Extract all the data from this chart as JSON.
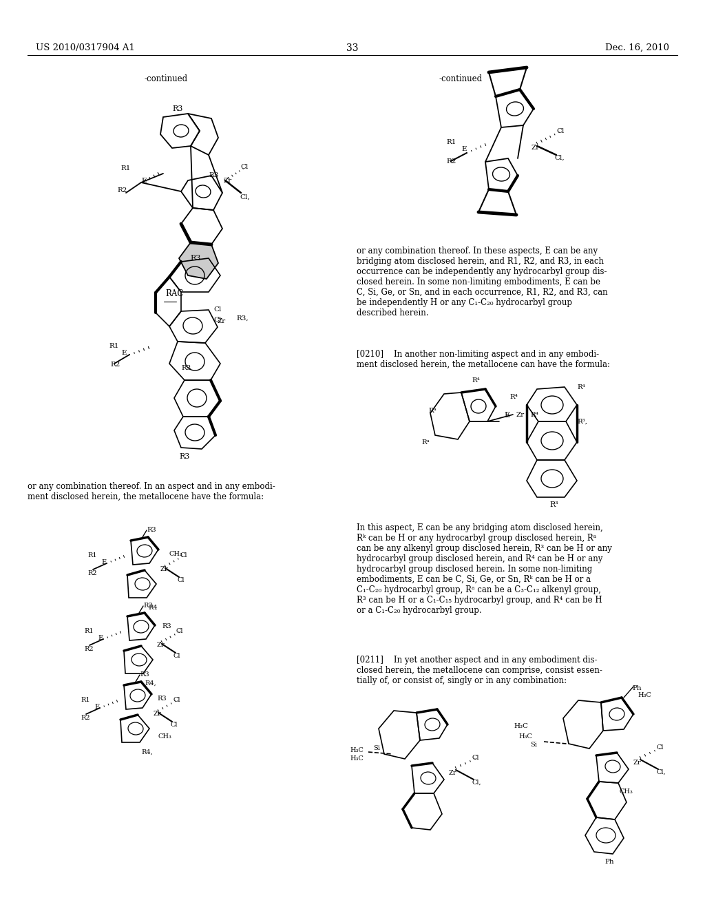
{
  "background_color": "#ffffff",
  "header_left": "US 2010/0317904 A1",
  "header_center": "33",
  "header_right": "Dec. 16, 2010",
  "left_continued": "-continued",
  "right_continued": "-continued",
  "rac_label": "RAC",
  "body_left_1": "or any combination thereof. In an aspect and in any embodi-\nment disclosed herein, the metallocene have the formula:",
  "body_right_1": "or any combination thereof. In these aspects, E can be any\nbridging atom disclosed herein, and R1, R2, and R3, in each\noccurrence can be independently any hydrocarbyl group dis-\nclosed herein. In some non-limiting embodiments, E can be\nC, Si, Ge, or Sn, and in each occurrence, R1, R2, and R3, can\nbe independently H or any C₁-C₂₀ hydrocarbyl group\ndescribed herein.",
  "para_0210": "[0210]    In another non-limiting aspect and in any embodi-\nment disclosed herein, the metallocene can have the formula:",
  "body_right_2": "In this aspect, E can be any bridging atom disclosed herein,\nRᵏ can be H or any hydrocarbyl group disclosed herein, Rᵃ\ncan be any alkenyl group disclosed herein, R³ can be H or any\nhydrocarbyl group disclosed herein, and R⁴ can be H or any\nhydrocarbyl group disclosed herein. In some non-limiting\nembodiments, E can be C, Si, Ge, or Sn, Rᵏ can be H or a\nC₁-C₂₀ hydrocarbyl group, Rᵃ can be a C₃-C₁₂ alkenyl group,\nR³ can be H or a C₁-C₁₅ hydrocarbyl group, and R⁴ can be H\nor a C₁-C₂₀ hydrocarbyl group.",
  "para_0211": "[0211]    In yet another aspect and in any embodiment dis-\nclosed herein, the metallocene can comprise, consist essen-\ntially of, or consist of, singly or in any combination:"
}
